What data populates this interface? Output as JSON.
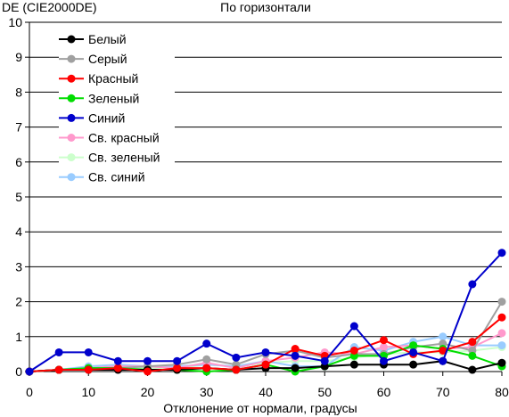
{
  "chart_data": {
    "type": "line",
    "title": "По горизонтали",
    "ylabel": "DE (CIE2000DE)",
    "xlabel": "Отклонение от нормали, градусы",
    "xlim": [
      0,
      80
    ],
    "ylim": [
      0,
      10
    ],
    "x_ticks": [
      "0",
      "10",
      "20",
      "30",
      "40",
      "50",
      "60",
      "70",
      "80"
    ],
    "y_ticks": [
      "0",
      "1",
      "2",
      "3",
      "4",
      "5",
      "6",
      "7",
      "8",
      "9",
      "10"
    ],
    "grid": "horizontal",
    "legend_position": "top-left",
    "x": [
      0,
      5,
      10,
      15,
      20,
      25,
      30,
      35,
      40,
      45,
      50,
      55,
      60,
      65,
      70,
      75,
      80
    ],
    "series": [
      {
        "name": "Белый",
        "color": "#000000",
        "values": [
          0,
          0.05,
          0.05,
          0.05,
          0.05,
          0.05,
          0.1,
          0.05,
          0.1,
          0.1,
          0.15,
          0.2,
          0.2,
          0.2,
          0.3,
          0.05,
          0.25
        ]
      },
      {
        "name": "Серый",
        "color": "#a0a0a0",
        "values": [
          0,
          0.05,
          0.1,
          0.1,
          0.15,
          0.2,
          0.35,
          0.2,
          0.5,
          0.6,
          0.4,
          0.5,
          0.5,
          0.7,
          0.8,
          0.6,
          2.0
        ]
      },
      {
        "name": "Красный",
        "color": "#ff0000",
        "values": [
          0,
          0.05,
          0.05,
          0.1,
          0.0,
          0.1,
          0.1,
          0.05,
          0.2,
          0.65,
          0.45,
          0.6,
          0.9,
          0.5,
          0.6,
          0.85,
          1.55
        ]
      },
      {
        "name": "Зеленый",
        "color": "#00dd00",
        "values": [
          0,
          0.05,
          0.1,
          0.1,
          0.05,
          0.05,
          0.0,
          0.05,
          0.2,
          0.0,
          0.15,
          0.45,
          0.45,
          0.75,
          0.65,
          0.45,
          0.15
        ]
      },
      {
        "name": "Синий",
        "color": "#0000cc",
        "values": [
          0,
          0.55,
          0.55,
          0.3,
          0.3,
          0.3,
          0.8,
          0.4,
          0.55,
          0.45,
          0.3,
          1.3,
          0.3,
          0.55,
          0.3,
          2.5,
          3.4
        ]
      },
      {
        "name": "Св. красный",
        "color": "#ff99cc",
        "values": [
          0,
          0.05,
          0.1,
          0.15,
          0.15,
          0.1,
          0.25,
          0.1,
          0.3,
          0.4,
          0.55,
          0.5,
          0.7,
          0.75,
          0.65,
          0.7,
          1.1
        ]
      },
      {
        "name": "Св. зеленый",
        "color": "#ccffcc",
        "values": [
          0,
          0.05,
          0.1,
          0.1,
          0.1,
          0.1,
          0.2,
          0.15,
          0.25,
          0.3,
          0.3,
          0.4,
          0.5,
          0.55,
          0.55,
          0.6,
          0.7
        ]
      },
      {
        "name": "Св. синий",
        "color": "#99ccff",
        "values": [
          0,
          0.05,
          0.15,
          0.2,
          0.15,
          0.15,
          0.2,
          0.15,
          0.3,
          0.15,
          0.15,
          0.7,
          0.6,
          0.85,
          1.0,
          0.75,
          0.75
        ]
      }
    ]
  }
}
